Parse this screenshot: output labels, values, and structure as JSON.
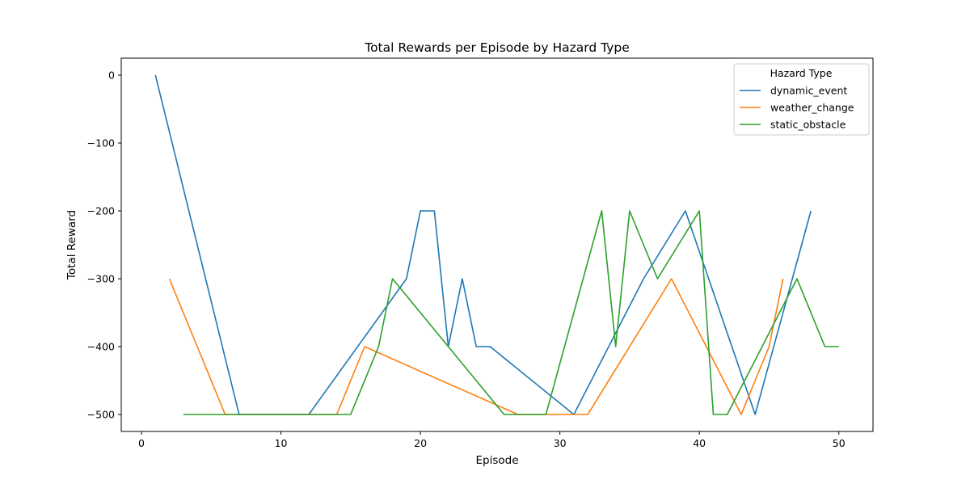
{
  "chart_data": {
    "type": "line",
    "title": "Total Rewards per Episode by Hazard Type",
    "xlabel": "Episode",
    "ylabel": "Total Reward",
    "xlim": [
      -1.45,
      52.45
    ],
    "ylim": [
      -525,
      25
    ],
    "xticks": [
      0,
      10,
      20,
      30,
      40,
      50
    ],
    "yticks": [
      0,
      -100,
      -200,
      -300,
      -400,
      -500
    ],
    "grid": false,
    "legend": {
      "title": "Hazard Type",
      "position": "top-right"
    },
    "series": [
      {
        "name": "dynamic_event",
        "color": "#1f77b4",
        "x": [
          1,
          7,
          12,
          19,
          20,
          21,
          22,
          23,
          24,
          25,
          31,
          36,
          39,
          44,
          48
        ],
        "y": [
          0,
          -500,
          -500,
          -300,
          -200,
          -200,
          -400,
          -300,
          -400,
          -400,
          -500,
          -300,
          -200,
          -500,
          -200
        ]
      },
      {
        "name": "weather_change",
        "color": "#ff7f0e",
        "x": [
          2,
          6,
          14,
          16,
          27,
          32,
          38,
          43,
          45,
          46
        ],
        "y": [
          -300,
          -500,
          -500,
          -400,
          -500,
          -500,
          -300,
          -500,
          -400,
          -300
        ]
      },
      {
        "name": "static_obstacle",
        "color": "#2ca02c",
        "x": [
          3,
          15,
          17,
          18,
          26,
          29,
          33,
          34,
          35,
          37,
          40,
          41,
          42,
          47,
          49,
          50
        ],
        "y": [
          -500,
          -500,
          -400,
          -300,
          -500,
          -500,
          -200,
          -400,
          -200,
          -300,
          -200,
          -500,
          -500,
          -300,
          -400,
          -400
        ]
      }
    ]
  }
}
